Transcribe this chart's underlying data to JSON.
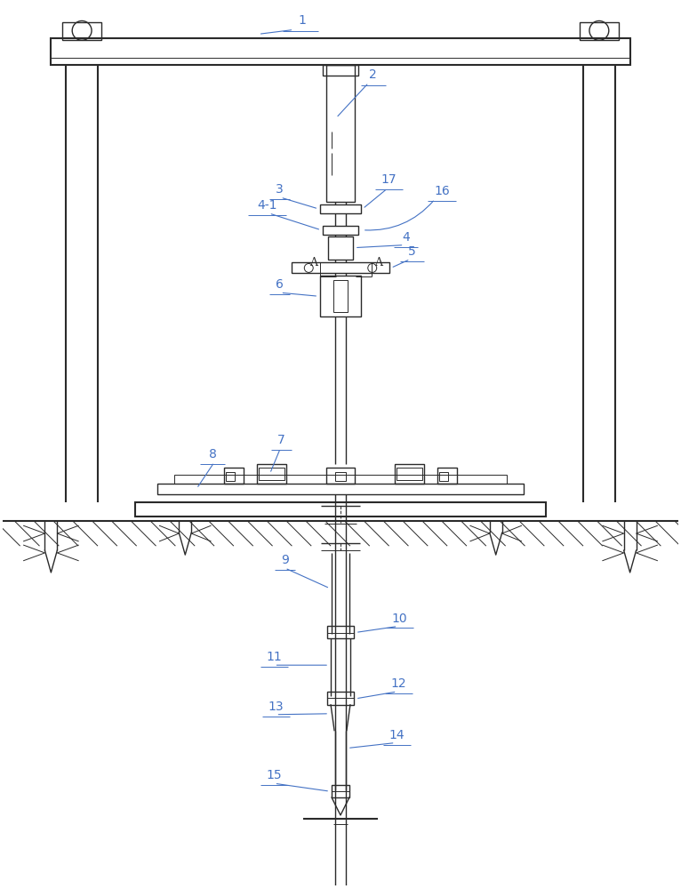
{
  "bg_color": "#ffffff",
  "line_color": "#2a2a2a",
  "label_color": "#4472c4",
  "label_fontsize": 10,
  "fig_width": 7.66,
  "fig_height": 10.0
}
